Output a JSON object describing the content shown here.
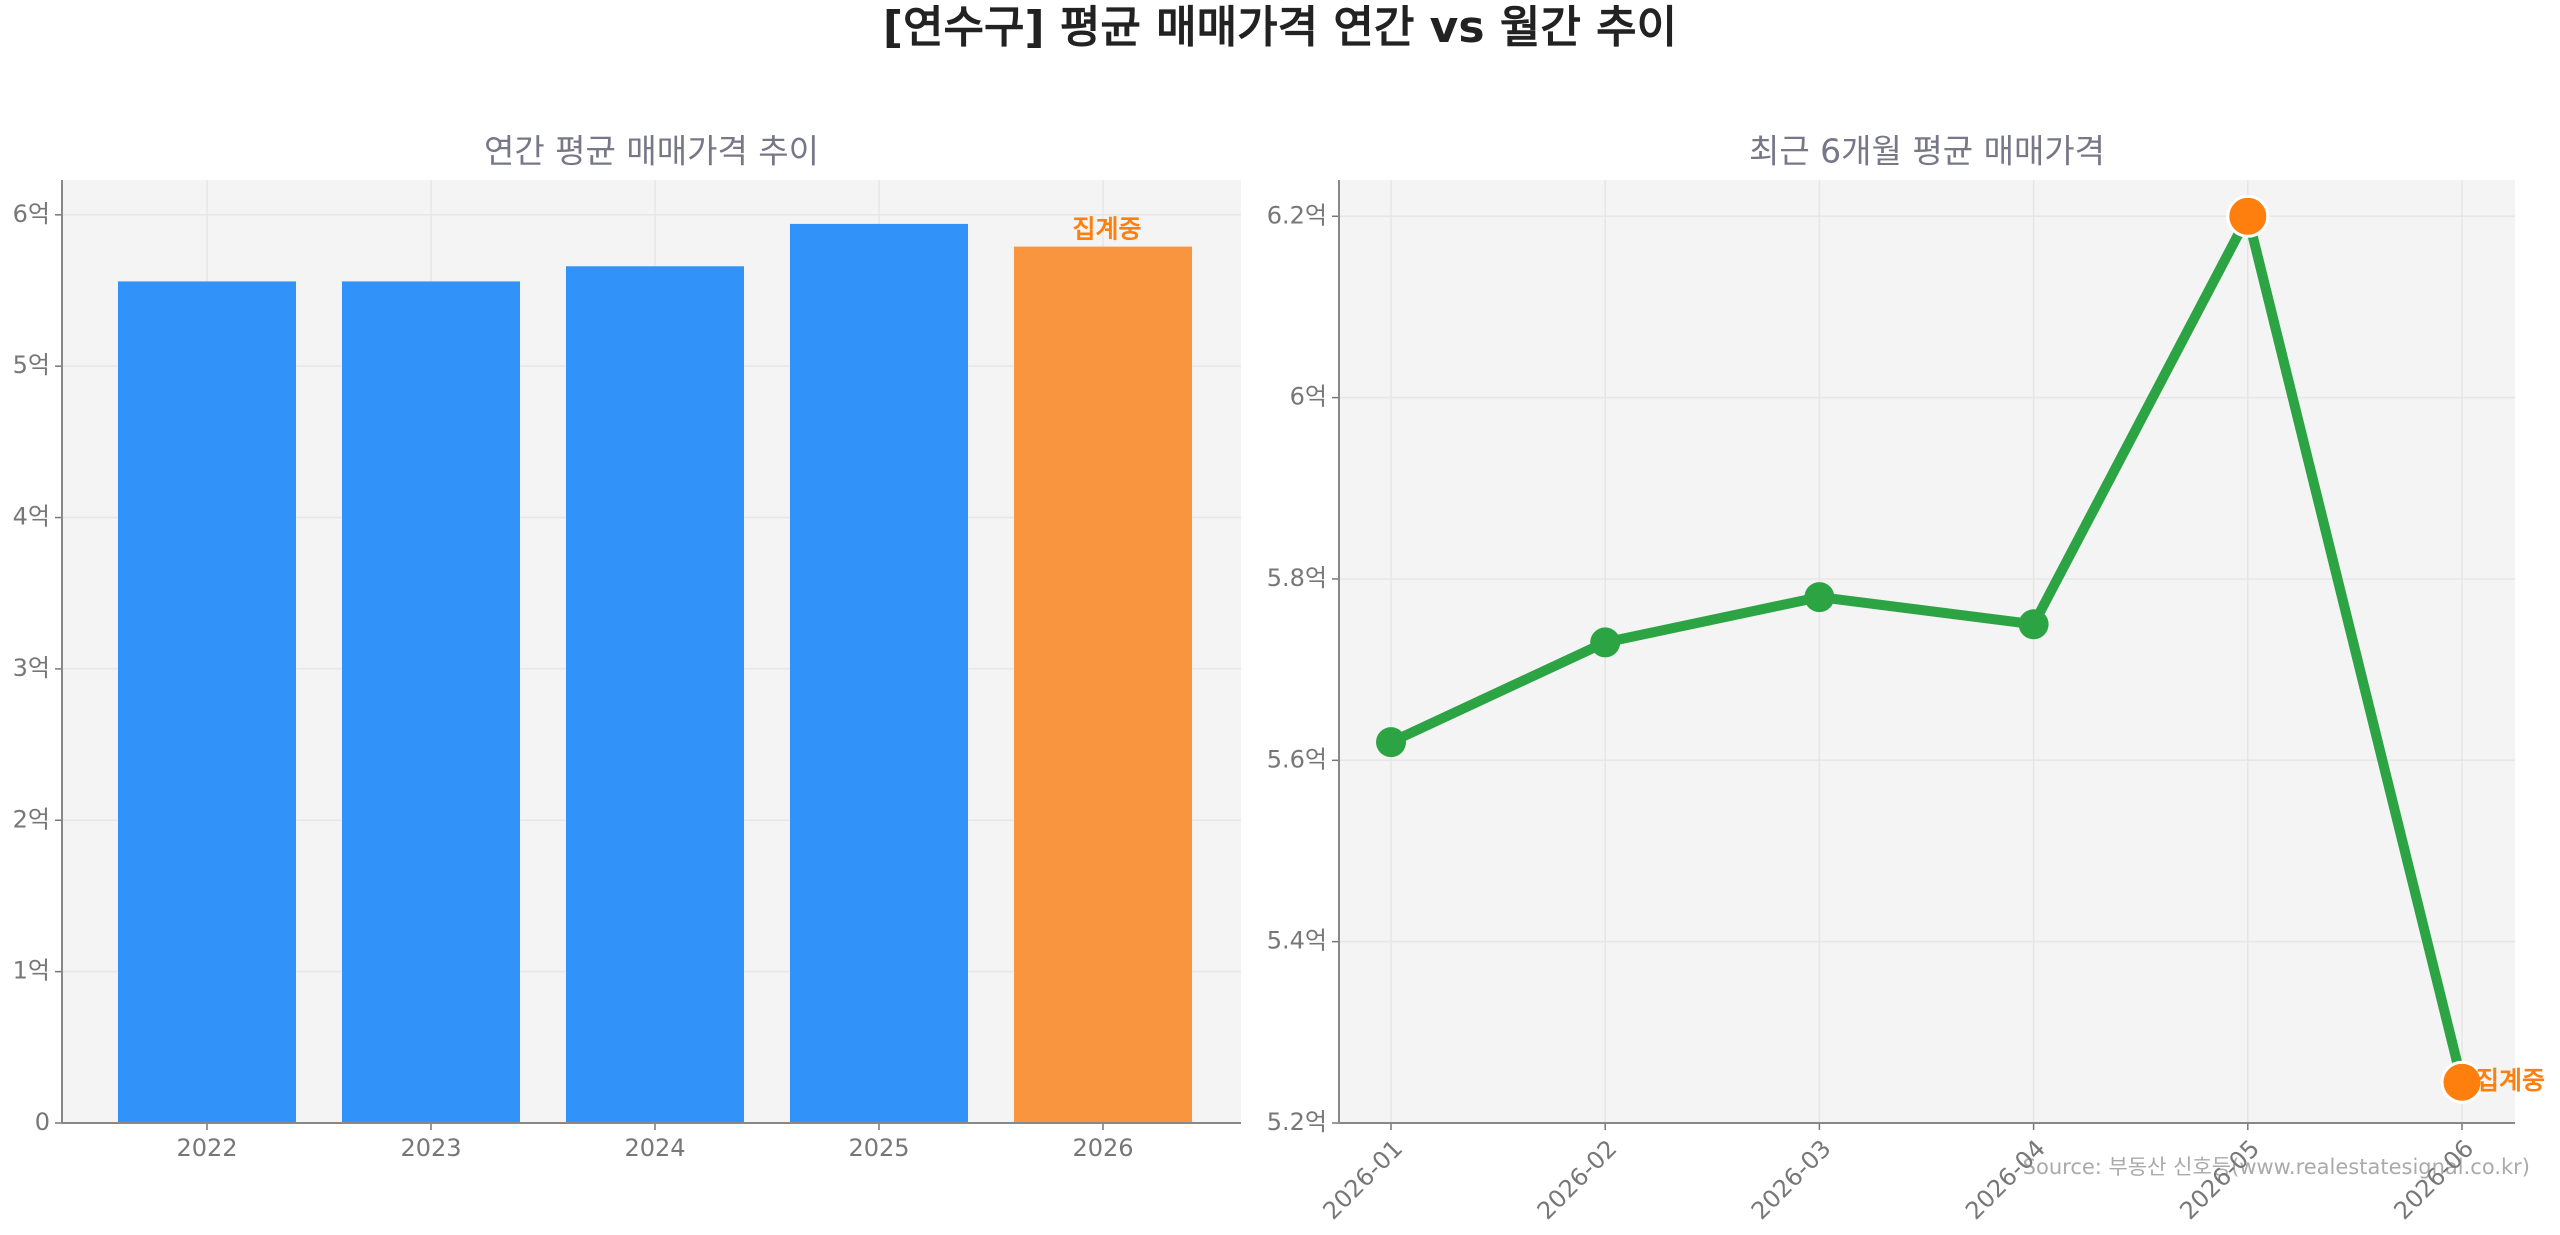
{
  "title": "[연수구] 평균 매매가격 연간 vs 월간 추이",
  "source": "Source: 부동산 신호등(www.realestatesignal.co.kr)",
  "chart_data": [
    {
      "type": "bar",
      "title": "연간 평균 매매가격 추이",
      "categories": [
        "2022",
        "2023",
        "2024",
        "2025",
        "2026"
      ],
      "values": [
        5.56,
        5.56,
        5.66,
        5.94,
        5.79
      ],
      "colors": [
        "#3192fa",
        "#3192fa",
        "#3192fa",
        "#3192fa",
        "#f9953e"
      ],
      "annotation": "집계중",
      "ylim": [
        0,
        6.23
      ],
      "yticks": [
        0,
        {
          "value": 1,
          "label": "1억"
        },
        {
          "value": 2,
          "label": "2억"
        },
        {
          "value": 3,
          "label": "3억"
        },
        {
          "value": 4,
          "label": "4억"
        },
        {
          "value": 5,
          "label": "5억"
        },
        {
          "value": 6,
          "label": "6억"
        }
      ],
      "grid": true
    },
    {
      "type": "line",
      "title": "최근 6개월 평균 매매가격",
      "categories": [
        "2026-01",
        "2026-02",
        "2026-03",
        "2026-04",
        "2026-05",
        "2026-06"
      ],
      "values": [
        5.62,
        5.73,
        5.78,
        5.75,
        6.2,
        5.245
      ],
      "color": "#2ca444",
      "marker_colors": [
        "#2ca444",
        "#2ca444",
        "#2ca444",
        "#2ca444",
        "#ff7f0e",
        "#ff7f0e"
      ],
      "annotation": "집계중",
      "ylim": [
        5.2,
        6.24
      ],
      "yticks": [
        {
          "value": 5.2,
          "label": "5.2억"
        },
        {
          "value": 5.4,
          "label": "5.4억"
        },
        {
          "value": 5.6,
          "label": "5.6억"
        },
        {
          "value": 5.8,
          "label": "5.8억"
        },
        {
          "value": 6,
          "label": "6억"
        },
        {
          "value": 6.2,
          "label": "6.2억"
        }
      ],
      "grid": true
    }
  ]
}
